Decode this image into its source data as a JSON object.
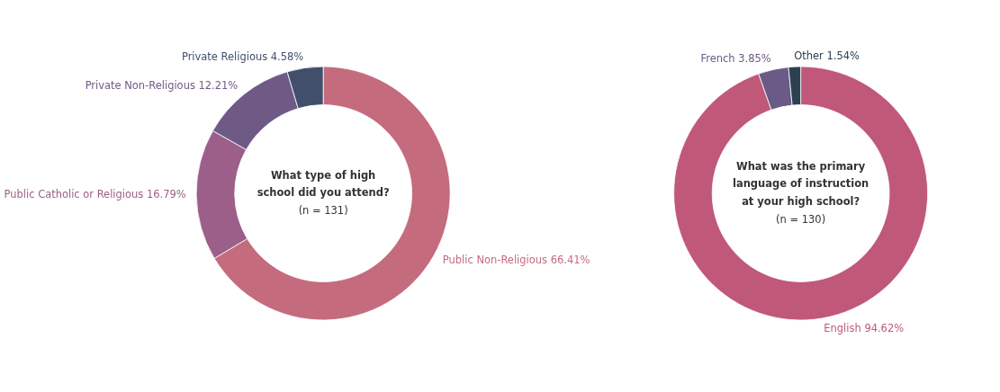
{
  "chart_data": [
    {
      "type": "donut",
      "title": "What type of high school did you attend?",
      "subtitle": "(n = 131)",
      "categories": [
        "Public Non-Religious",
        "Public Catholic or Religious",
        "Private Non-Religious",
        "Private Religious"
      ],
      "values": [
        66.41,
        16.79,
        12.21,
        4.58
      ],
      "value_labels": [
        "66.41%",
        "16.79%",
        "12.21%",
        "4.58%"
      ],
      "colors": [
        "#c46b7e",
        "#9c5f8a",
        "#6e5a85",
        "#414f6d"
      ]
    },
    {
      "type": "donut",
      "title": "What was the primary language of instruction at your high school?",
      "subtitle": "(n = 130)",
      "categories": [
        "English",
        "French",
        "Other"
      ],
      "values": [
        94.62,
        3.85,
        1.54
      ],
      "value_labels": [
        "94.62%",
        "3.85%",
        "1.54%"
      ],
      "colors": [
        "#c0587a",
        "#6a5a85",
        "#2c4052"
      ]
    }
  ]
}
